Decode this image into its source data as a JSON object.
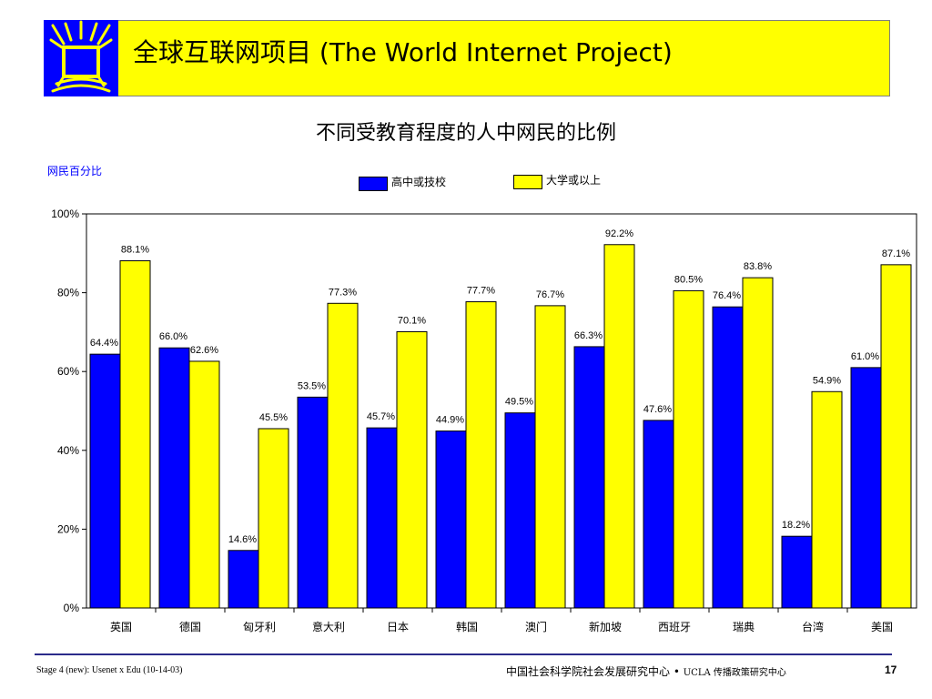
{
  "header": {
    "title": "全球互联网项目 (The World Internet Project)",
    "logo": "wip-logo-icon",
    "colors": {
      "banner": "#ffff00",
      "logo": "#0000ff"
    }
  },
  "chart_data": {
    "type": "bar",
    "title": "不同受教育程度的人中网民的比例",
    "ylabel": "网民百分比",
    "xlabel": "",
    "ylim": [
      0,
      100
    ],
    "yticks": [
      "0%",
      "20%",
      "40%",
      "60%",
      "80%",
      "100%"
    ],
    "grid": false,
    "legend_position": "top-center",
    "categories": [
      "英国",
      "德国",
      "匈牙利",
      "意大利",
      "日本",
      "韩国",
      "澳门",
      "新加坡",
      "西班牙",
      "瑞典",
      "台湾",
      "美国"
    ],
    "series": [
      {
        "name": "高中或技校",
        "color": "#0000ff",
        "values": [
          64.4,
          66.0,
          14.6,
          53.5,
          45.7,
          44.9,
          49.5,
          66.3,
          47.6,
          76.4,
          18.2,
          61.0
        ],
        "labels": [
          "64.4%",
          "66.0%",
          "14.6%",
          "53.5%",
          "45.7%",
          "44.9%",
          "49.5%",
          "66.3%",
          "47.6%",
          "76.4%",
          "18.2%",
          "61.0%"
        ]
      },
      {
        "name": "大学或以上",
        "color": "#ffff00",
        "values": [
          88.1,
          62.6,
          45.5,
          77.3,
          70.1,
          77.7,
          76.7,
          92.2,
          80.5,
          83.8,
          54.9,
          87.1
        ],
        "labels": [
          "88.1%",
          "62.6%",
          "45.5%",
          "77.3%",
          "70.1%",
          "77.7%",
          "76.7%",
          "92.2%",
          "80.5%",
          "83.8%",
          "54.9%",
          "87.1%"
        ]
      }
    ]
  },
  "footer": {
    "left": "Stage 4 (new): Usenet x Edu (10-14-03)",
    "center_main": "中国社会科学院社会发展研究中心",
    "center_sep": "•",
    "center_ucla": "UCLA 传播政策研究中心",
    "page": "17"
  }
}
